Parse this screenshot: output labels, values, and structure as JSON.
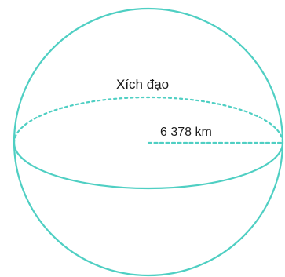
{
  "diagram": {
    "equator_label": "Xích đạo",
    "radius_label": "6 378 km",
    "stroke_color": "#4fcfc3",
    "text_color": "#1a1a1a"
  }
}
